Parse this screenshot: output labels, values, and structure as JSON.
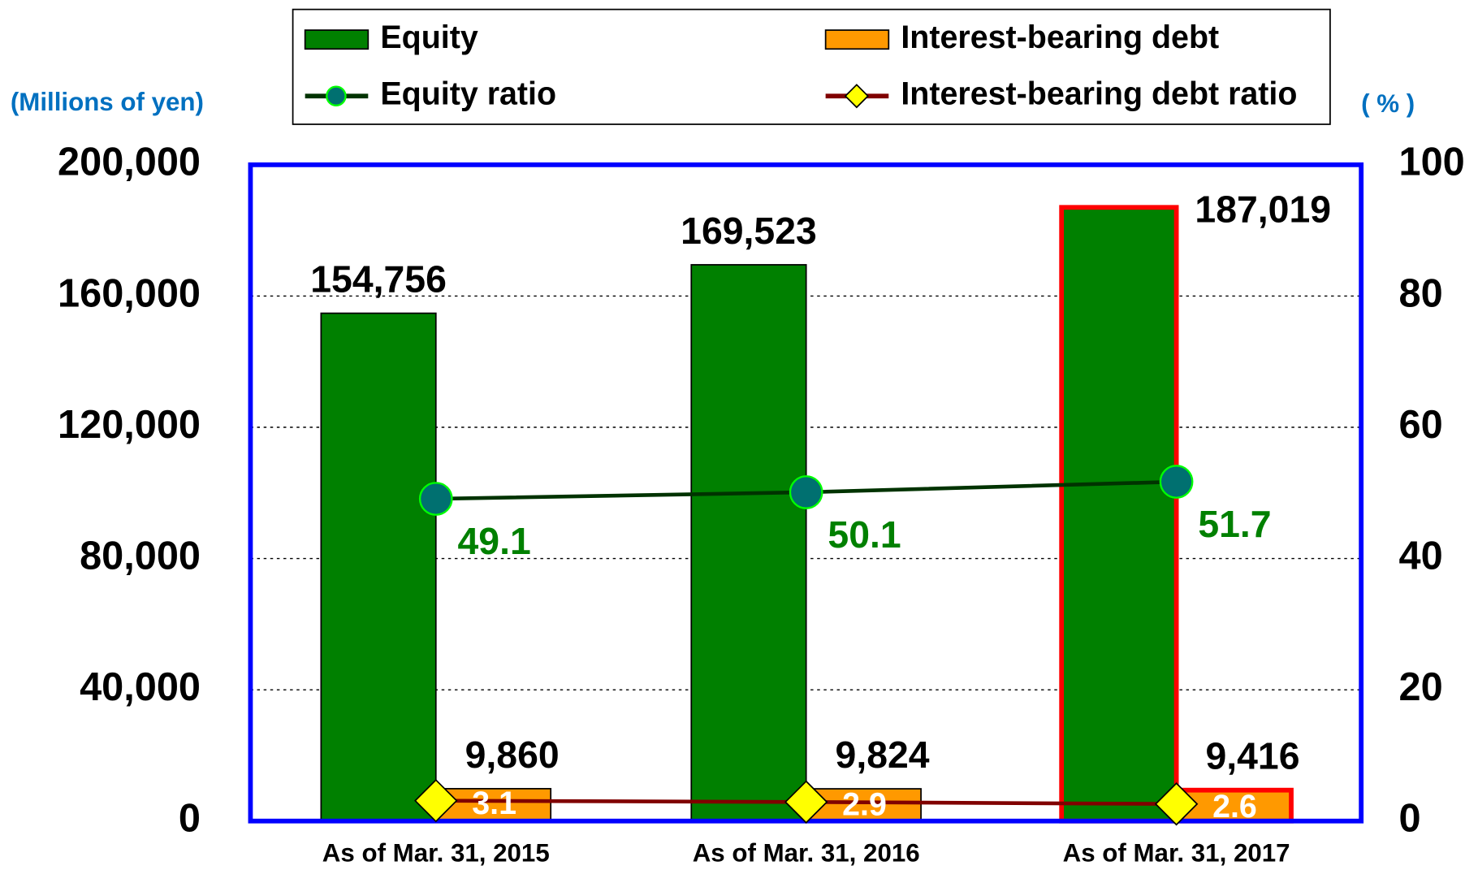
{
  "chart_data": {
    "type": "bar_line",
    "y_label": "(Millions of yen)",
    "y2_label": "( % )",
    "categories": [
      "As of Mar. 31, 2015",
      "As of Mar. 31, 2016",
      "As of Mar. 31, 2017"
    ],
    "series": [
      {
        "name": "Equity",
        "color": "#008000",
        "kind": "bar",
        "values": [
          154756,
          169523,
          187019
        ],
        "value_labels": [
          "154,756",
          "169,523",
          "187,019"
        ]
      },
      {
        "name": "Interest-bearing debt",
        "color": "#ff9900",
        "kind": "bar",
        "values": [
          9860,
          9824,
          9416
        ],
        "value_labels": [
          "9,860",
          "9,824",
          "9,416"
        ]
      },
      {
        "name": "Equity ratio",
        "color": "#003300",
        "marker_color": "#007070",
        "label_color": "#008000",
        "kind": "line",
        "axis": "y2",
        "values": [
          49.1,
          50.1,
          51.7
        ]
      },
      {
        "name": "Interest-bearing debt ratio",
        "color": "#800000",
        "marker_color": "#ffff00",
        "label_color": "#ffffff",
        "kind": "line",
        "axis": "y2",
        "values": [
          3.1,
          2.9,
          2.6
        ]
      }
    ],
    "ylim": [
      0,
      200000
    ],
    "yticks": [
      0,
      {
        "value": 40000,
        "label": "40,000"
      },
      {
        "value": 80000,
        "label": "80,000"
      },
      {
        "value": 120000,
        "label": "120,000"
      },
      {
        "value": 160000,
        "label": "160,000"
      },
      {
        "value": 200000,
        "label": "200,000"
      }
    ],
    "y2lim": [
      0,
      100
    ],
    "y2ticks": [
      0,
      20,
      40,
      60,
      80,
      100
    ],
    "grid": true,
    "frame_color": "#0000ff",
    "highlight_index": 2,
    "highlight_color": "#ff0000"
  }
}
